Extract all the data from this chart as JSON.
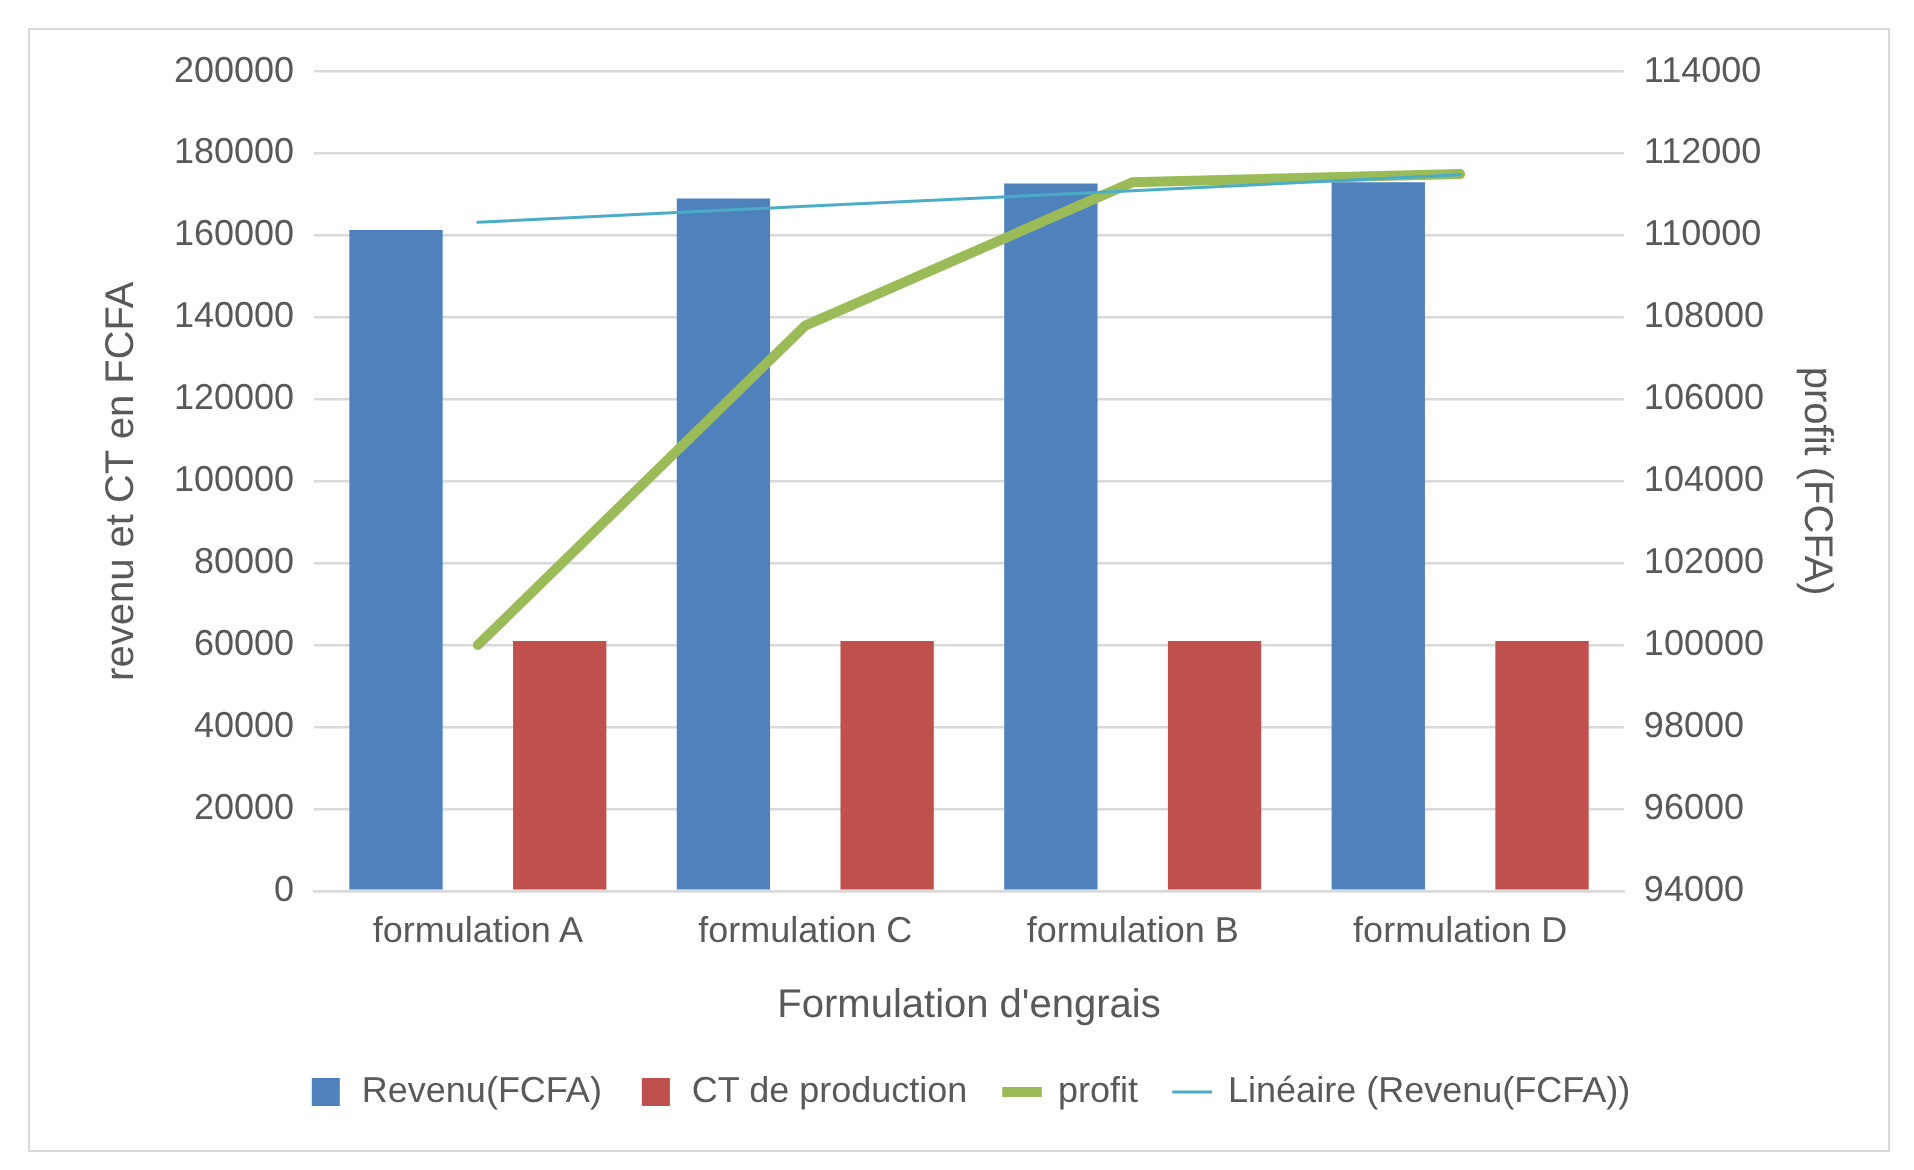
{
  "chart_data": {
    "type": "bar",
    "xlabel": "Formulation d'engrais",
    "ylabel": "revenu et CT en FCFA",
    "y2label": "profit (FCFA)",
    "categories": [
      "formulation A",
      "formulation C",
      "formulation B",
      "formulation D"
    ],
    "series": [
      {
        "name": "Revenu(FCFA)",
        "color": "#4f81bd",
        "values": [
          161300,
          169000,
          172700,
          173000
        ]
      },
      {
        "name": "CT de production",
        "color": "#c0504d",
        "values": [
          61000,
          61000,
          61000,
          61000
        ]
      },
      {
        "name": "profit",
        "type": "line",
        "axis": "y2",
        "color": "#9bbb59",
        "values": [
          100000,
          107800,
          111300,
          111500
        ]
      },
      {
        "name": "Linéaire (Revenu(FCFA))",
        "type": "line",
        "color": "#4bacc6",
        "x": [
          "formulation A",
          "formulation C",
          "formulation B",
          "formulation D"
        ],
        "values": [
          163200,
          167100,
          170900,
          174800
        ]
      }
    ],
    "ylim": [
      0,
      200000
    ],
    "yticks": [
      0,
      20000,
      40000,
      60000,
      80000,
      100000,
      120000,
      140000,
      160000,
      180000,
      200000
    ],
    "y2lim": [
      94000,
      114000
    ],
    "y2ticks": [
      94000,
      96000,
      98000,
      100000,
      102000,
      104000,
      106000,
      108000,
      110000,
      112000,
      114000
    ],
    "grid": "y",
    "legend": "bottom",
    "marker": "none"
  }
}
